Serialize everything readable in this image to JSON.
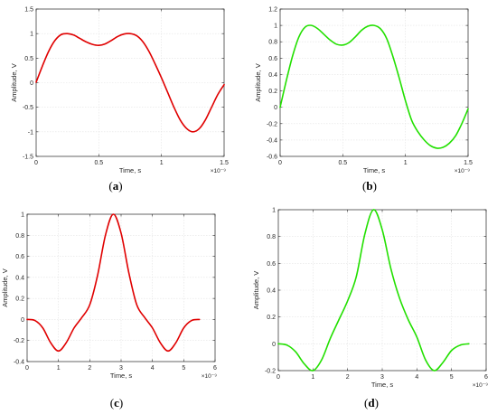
{
  "chart_data": [
    {
      "type": "line",
      "caption_letter": "a",
      "xlabel": "Time, s",
      "ylabel": "Amplitude, V",
      "x_exponent": "×10⁻⁹",
      "xlim": [
        0,
        1.5
      ],
      "ylim": [
        -1.5,
        1.5
      ],
      "xticks": [
        0,
        0.5,
        1,
        1.5
      ],
      "xtick_labels": [
        "0",
        "0.5",
        "1",
        "1.5"
      ],
      "yticks": [
        -1.5,
        -1,
        -0.5,
        0,
        0.5,
        1,
        1.5
      ],
      "ytick_labels": [
        "-1.5",
        "-1",
        "-0.5",
        "0",
        "0.5",
        "1",
        "1.5"
      ],
      "grid": true,
      "color": "#e00000",
      "series": [
        {
          "x": [
            0,
            0.05,
            0.1,
            0.15,
            0.2,
            0.25,
            0.3,
            0.35,
            0.4,
            0.45,
            0.5,
            0.55,
            0.6,
            0.65,
            0.7,
            0.75,
            0.8,
            0.85,
            0.9,
            0.95,
            1.0,
            1.05,
            1.1,
            1.15,
            1.2,
            1.25,
            1.3,
            1.35,
            1.4,
            1.45,
            1.5
          ],
          "y": [
            0.01,
            0.34,
            0.64,
            0.86,
            0.98,
            1.0,
            0.97,
            0.9,
            0.83,
            0.78,
            0.76,
            0.79,
            0.86,
            0.94,
            0.99,
            1.0,
            0.96,
            0.84,
            0.64,
            0.38,
            0.1,
            -0.2,
            -0.5,
            -0.76,
            -0.93,
            -1.0,
            -0.94,
            -0.76,
            -0.5,
            -0.24,
            -0.04
          ]
        }
      ]
    },
    {
      "type": "line",
      "caption_letter": "b",
      "xlabel": "Time, s",
      "ylabel": "Amplitude, V",
      "x_exponent": "×10⁻⁹",
      "xlim": [
        0,
        1.5
      ],
      "ylim": [
        -0.6,
        1.2
      ],
      "xticks": [
        0,
        0.5,
        1,
        1.5
      ],
      "xtick_labels": [
        "0",
        "0.5",
        "1",
        "1.5"
      ],
      "yticks": [
        -0.6,
        -0.4,
        -0.2,
        0,
        0.2,
        0.4,
        0.6,
        0.8,
        1,
        1.2
      ],
      "ytick_labels": [
        "-0.6",
        "-0.4",
        "-0.2",
        "0",
        "0.2",
        "0.4",
        "0.6",
        "0.8",
        "1",
        "1.2"
      ],
      "grid": true,
      "color": "#22e000",
      "series": [
        {
          "x": [
            0,
            0.05,
            0.1,
            0.15,
            0.2,
            0.25,
            0.3,
            0.35,
            0.4,
            0.45,
            0.5,
            0.55,
            0.6,
            0.65,
            0.7,
            0.75,
            0.8,
            0.85,
            0.9,
            0.95,
            1.0,
            1.05,
            1.1,
            1.15,
            1.2,
            1.25,
            1.3,
            1.35,
            1.4,
            1.45,
            1.5
          ],
          "y": [
            0.0,
            0.33,
            0.63,
            0.86,
            0.98,
            1.0,
            0.96,
            0.89,
            0.82,
            0.77,
            0.76,
            0.79,
            0.86,
            0.94,
            0.99,
            1.0,
            0.96,
            0.84,
            0.62,
            0.36,
            0.08,
            -0.16,
            -0.3,
            -0.4,
            -0.47,
            -0.5,
            -0.49,
            -0.44,
            -0.35,
            -0.2,
            -0.02
          ]
        }
      ]
    },
    {
      "type": "line",
      "caption_letter": "c",
      "xlabel": "Time, s",
      "ylabel": "Amplitude, V",
      "x_exponent": "×10⁻⁹",
      "xlim": [
        0,
        6
      ],
      "ylim": [
        -0.4,
        1
      ],
      "xticks": [
        0,
        1,
        2,
        3,
        4,
        5,
        6
      ],
      "xtick_labels": [
        "0",
        "1",
        "2",
        "3",
        "4",
        "5",
        "6"
      ],
      "yticks": [
        -0.4,
        -0.2,
        0,
        0.2,
        0.4,
        0.6,
        0.8,
        1
      ],
      "ytick_labels": [
        "-0.4",
        "-0.2",
        "0",
        "0.2",
        "0.4",
        "0.6",
        "0.8",
        "1"
      ],
      "grid": true,
      "color": "#e00000",
      "series": [
        {
          "x": [
            0,
            0.25,
            0.5,
            0.75,
            1.0,
            1.25,
            1.5,
            1.75,
            2.0,
            2.25,
            2.5,
            2.75,
            3.0,
            3.25,
            3.5,
            3.75,
            4.0,
            4.25,
            4.5,
            4.75,
            5.0,
            5.25,
            5.5
          ],
          "y": [
            0.0,
            -0.01,
            -0.08,
            -0.22,
            -0.3,
            -0.22,
            -0.08,
            0.02,
            0.14,
            0.42,
            0.8,
            1.0,
            0.82,
            0.44,
            0.14,
            0.02,
            -0.08,
            -0.22,
            -0.3,
            -0.22,
            -0.08,
            -0.01,
            0.0
          ]
        }
      ]
    },
    {
      "type": "line",
      "caption_letter": "d",
      "xlabel": "Time, s",
      "ylabel": "Amplitude, V",
      "x_exponent": "×10⁻⁹",
      "xlim": [
        0,
        6
      ],
      "ylim": [
        -0.2,
        1
      ],
      "xticks": [
        0,
        1,
        2,
        3,
        4,
        5,
        6
      ],
      "xtick_labels": [
        "0",
        "1",
        "2",
        "3",
        "4",
        "5",
        "6"
      ],
      "yticks": [
        -0.2,
        0,
        0.2,
        0.4,
        0.6,
        0.8,
        1
      ],
      "ytick_labels": [
        "-0.2",
        "0",
        "0.2",
        "0.4",
        "0.6",
        "0.8",
        "1"
      ],
      "grid": true,
      "color": "#22e000",
      "series": [
        {
          "x": [
            0,
            0.25,
            0.5,
            0.75,
            1.0,
            1.25,
            1.5,
            1.75,
            2.0,
            2.25,
            2.5,
            2.75,
            3.0,
            3.25,
            3.5,
            3.75,
            4.0,
            4.25,
            4.5,
            4.75,
            5.0,
            5.25,
            5.5
          ],
          "y": [
            0.0,
            -0.01,
            -0.06,
            -0.15,
            -0.2,
            -0.12,
            0.04,
            0.18,
            0.32,
            0.5,
            0.82,
            1.0,
            0.85,
            0.56,
            0.34,
            0.18,
            0.05,
            -0.12,
            -0.2,
            -0.14,
            -0.05,
            -0.01,
            0.0
          ]
        }
      ]
    }
  ]
}
